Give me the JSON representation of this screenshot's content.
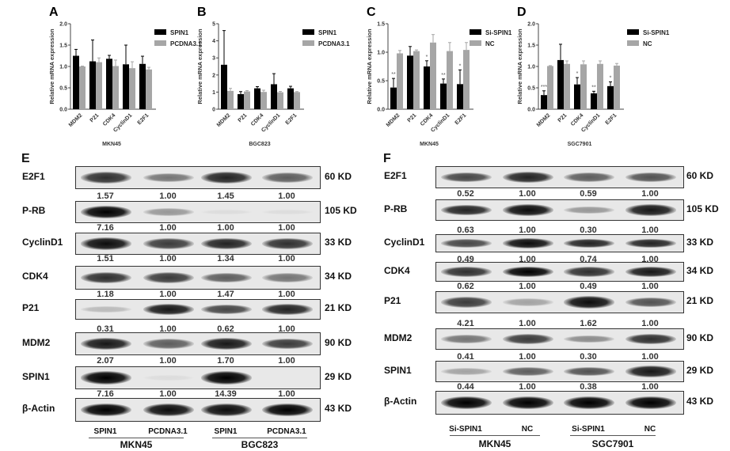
{
  "chart_data": [
    {
      "panel": "A",
      "type": "bar",
      "categories": [
        "MDM2",
        "P21",
        "CDK4",
        "CyclinD1",
        "E2F1"
      ],
      "ylabel": "Relative mRNA expression",
      "xlabel": "MKN45",
      "ylim": [
        0,
        2.0
      ],
      "yticks": [
        "0.0",
        "0.5",
        "1.0",
        "1.5",
        "2.0"
      ],
      "ytick_values": [
        0,
        0.5,
        1,
        1.5,
        2
      ],
      "series": [
        {
          "name": "SPIN1",
          "color": "#000000",
          "values": [
            1.25,
            1.12,
            1.18,
            1.05,
            1.06
          ],
          "errors": [
            0.15,
            0.5,
            0.08,
            0.45,
            0.18
          ]
        },
        {
          "name": "PCDNA3.1",
          "color": "#a6a6a6",
          "values": [
            1.0,
            1.1,
            1.01,
            0.96,
            0.93
          ],
          "errors": [
            0.01,
            0.1,
            0.14,
            0.15,
            0.05
          ]
        }
      ],
      "significance": [
        "",
        "",
        "",
        "",
        ""
      ]
    },
    {
      "panel": "B",
      "type": "bar",
      "categories": [
        "MDM2",
        "P21",
        "CDK4",
        "CyclinD1",
        "E2F1"
      ],
      "ylabel": "Relative mRNA expression",
      "xlabel": "BGC823",
      "ylim": [
        0,
        5
      ],
      "yticks": [
        "0",
        "1",
        "2",
        "3",
        "4",
        "5"
      ],
      "ytick_values": [
        0,
        1,
        2,
        3,
        4,
        5
      ],
      "series": [
        {
          "name": "SPIN1",
          "color": "#000000",
          "values": [
            2.6,
            0.88,
            1.22,
            1.46,
            1.22
          ],
          "errors": [
            2.0,
            0.15,
            0.1,
            0.62,
            0.12
          ]
        },
        {
          "name": "PCDNA3.1",
          "color": "#a6a6a6",
          "values": [
            1.07,
            1.04,
            1.01,
            0.99,
            1.0
          ],
          "errors": [
            0.15,
            0.05,
            0.1,
            0.05,
            0.03
          ]
        }
      ],
      "significance": [
        "",
        "",
        "",
        "",
        ""
      ]
    },
    {
      "panel": "C",
      "type": "bar",
      "categories": [
        "MDM2",
        "P21",
        "CDK4",
        "CyclinD1",
        "E2F1"
      ],
      "ylabel": "Relative mRNA expression",
      "xlabel": "MKN45",
      "ylim": [
        0,
        1.5
      ],
      "yticks": [
        "0.0",
        "0.5",
        "1.0",
        "1.5"
      ],
      "ytick_values": [
        0,
        0.5,
        1,
        1.5
      ],
      "series": [
        {
          "name": "Si-SPIN1",
          "color": "#000000",
          "values": [
            0.38,
            0.94,
            0.75,
            0.45,
            0.44
          ],
          "errors": [
            0.16,
            0.16,
            0.1,
            0.08,
            0.25
          ]
        },
        {
          "name": "NC",
          "color": "#a6a6a6",
          "values": [
            0.98,
            1.02,
            1.17,
            1.02,
            1.04
          ],
          "errors": [
            0.05,
            0.02,
            0.14,
            0.15,
            0.13
          ]
        }
      ],
      "significance": [
        "**",
        "",
        "*",
        "**",
        "*"
      ]
    },
    {
      "panel": "D",
      "type": "bar",
      "categories": [
        "MDM2",
        "P21",
        "CDK4",
        "CyclinD1",
        "E2F1"
      ],
      "ylabel": "Relative mRNA expression",
      "xlabel": "SGC7901",
      "ylim": [
        0,
        2.0
      ],
      "yticks": [
        "0.0",
        "0.5",
        "1.0",
        "1.5",
        "2.0"
      ],
      "ytick_values": [
        0,
        0.5,
        1,
        1.5,
        2
      ],
      "series": [
        {
          "name": "Si-SPIN1",
          "color": "#000000",
          "values": [
            0.33,
            1.15,
            0.58,
            0.37,
            0.54
          ],
          "errors": [
            0.1,
            0.37,
            0.16,
            0.05,
            0.1
          ]
        },
        {
          "name": "NC",
          "color": "#a6a6a6",
          "values": [
            1.01,
            1.06,
            1.05,
            1.06,
            1.02
          ],
          "errors": [
            0.01,
            0.07,
            0.08,
            0.07,
            0.05
          ]
        }
      ],
      "significance": [
        "***",
        "",
        "*",
        "**",
        "*"
      ]
    }
  ],
  "blots": [
    {
      "panel": "E",
      "rows": [
        {
          "label": "E2F1",
          "kd": "60 KD",
          "quant": [
            "1.57",
            "1.00",
            "1.45",
            "1.00"
          ],
          "intensity": [
            0.8,
            0.5,
            0.85,
            0.6
          ]
        },
        {
          "label": "P-RB",
          "kd": "105 KD",
          "quant": [
            "7.16",
            "1.00",
            "1.00",
            "1.00"
          ],
          "intensity": [
            1.0,
            0.35,
            0.05,
            0.05
          ]
        },
        {
          "label": "CyclinD1",
          "kd": "33 KD",
          "quant": [
            "1.51",
            "1.00",
            "1.34",
            "1.00"
          ],
          "intensity": [
            0.95,
            0.75,
            0.85,
            0.8
          ]
        },
        {
          "label": "CDK4",
          "kd": "34 KD",
          "quant": [
            "1.18",
            "1.00",
            "1.47",
            "1.00"
          ],
          "intensity": [
            0.8,
            0.75,
            0.6,
            0.5
          ]
        },
        {
          "label": "P21",
          "kd": "21 KD",
          "quant": [
            "0.31",
            "1.00",
            "0.62",
            "1.00"
          ],
          "intensity": [
            0.2,
            0.9,
            0.7,
            0.85
          ]
        },
        {
          "label": "MDM2",
          "kd": "90 KD",
          "quant": [
            "2.07",
            "1.00",
            "1.70",
            "1.00"
          ],
          "intensity": [
            0.9,
            0.6,
            0.9,
            0.75
          ]
        },
        {
          "label": "SPIN1",
          "kd": "29 KD",
          "quant": [
            "7.16",
            "1.00",
            "14.39",
            "1.00"
          ],
          "intensity": [
            1.0,
            0.05,
            1.0,
            0.0
          ]
        },
        {
          "label": "β-Actin",
          "kd": "43 KD",
          "quant": [],
          "intensity": [
            1.0,
            0.95,
            0.95,
            1.0
          ]
        }
      ],
      "lanes": [
        "SPIN1",
        "PCDNA3.1",
        "SPIN1",
        "PCDNA3.1"
      ],
      "groups": [
        "MKN45",
        "BGC823"
      ]
    },
    {
      "panel": "F",
      "rows": [
        {
          "label": "E2F1",
          "kd": "60 KD",
          "quant": [
            "0.52",
            "1.00",
            "0.59",
            "1.00"
          ],
          "intensity": [
            0.7,
            0.85,
            0.6,
            0.65
          ]
        },
        {
          "label": "P-RB",
          "kd": "105 KD",
          "quant": [
            "0.63",
            "1.00",
            "0.30",
            "1.00"
          ],
          "intensity": [
            0.85,
            0.95,
            0.35,
            0.9
          ]
        },
        {
          "label": "CyclinD1",
          "kd": "33 KD",
          "quant": [
            "0.49",
            "1.00",
            "0.74",
            "1.00"
          ],
          "intensity": [
            0.7,
            0.95,
            0.85,
            0.85
          ]
        },
        {
          "label": "CDK4",
          "kd": "34 KD",
          "quant": [
            "0.62",
            "1.00",
            "0.49",
            "1.00"
          ],
          "intensity": [
            0.8,
            1.0,
            0.8,
            0.9
          ]
        },
        {
          "label": "P21",
          "kd": "21 KD",
          "quant": [
            "4.21",
            "1.00",
            "1.62",
            "1.00"
          ],
          "intensity": [
            0.75,
            0.3,
            0.95,
            0.65
          ]
        },
        {
          "label": "MDM2",
          "kd": "90 KD",
          "quant": [
            "0.41",
            "1.00",
            "0.30",
            "1.00"
          ],
          "intensity": [
            0.5,
            0.75,
            0.4,
            0.8
          ]
        },
        {
          "label": "SPIN1",
          "kd": "29 KD",
          "quant": [
            "0.44",
            "1.00",
            "0.38",
            "1.00"
          ],
          "intensity": [
            0.3,
            0.6,
            0.65,
            0.9
          ]
        },
        {
          "label": "β-Actin",
          "kd": "43 KD",
          "quant": [],
          "intensity": [
            1.0,
            1.0,
            1.0,
            1.0
          ]
        }
      ],
      "lanes": [
        "Si-SPIN1",
        "NC",
        "Si-SPIN1",
        "NC"
      ],
      "groups": [
        "MKN45",
        "SGC7901"
      ]
    }
  ]
}
